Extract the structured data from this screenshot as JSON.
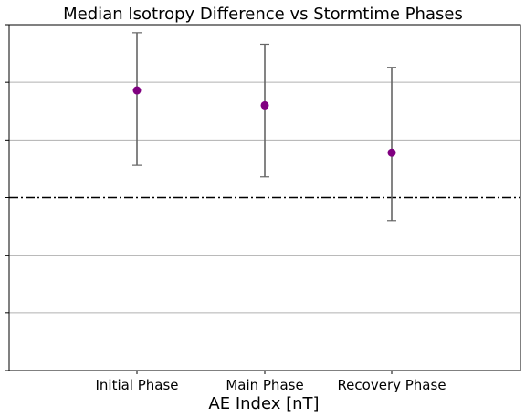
{
  "chart_data": {
    "type": "scatter",
    "title": "Median Isotropy Difference vs Stormtime Phases",
    "xlabel": "AE Index [nT]",
    "ylabel": "",
    "categories": [
      "Initial Phase",
      "Main Phase",
      "Recovery Phase"
    ],
    "series": [
      {
        "values": [
          0.93,
          0.8,
          0.39
        ],
        "err_upper": [
          1.43,
          1.33,
          1.13
        ],
        "err_lower": [
          0.28,
          0.18,
          -0.2
        ],
        "color": "#800080"
      }
    ],
    "ylim": [
      -1.5,
      1.5
    ],
    "y_grid_ticks": [
      -1.0,
      -0.5,
      0.5,
      1.0
    ],
    "reference_line": {
      "y": 0,
      "style": "dash-dot",
      "color": "#000000"
    },
    "grid": "horizontal",
    "errorbar_color": "#666666"
  }
}
